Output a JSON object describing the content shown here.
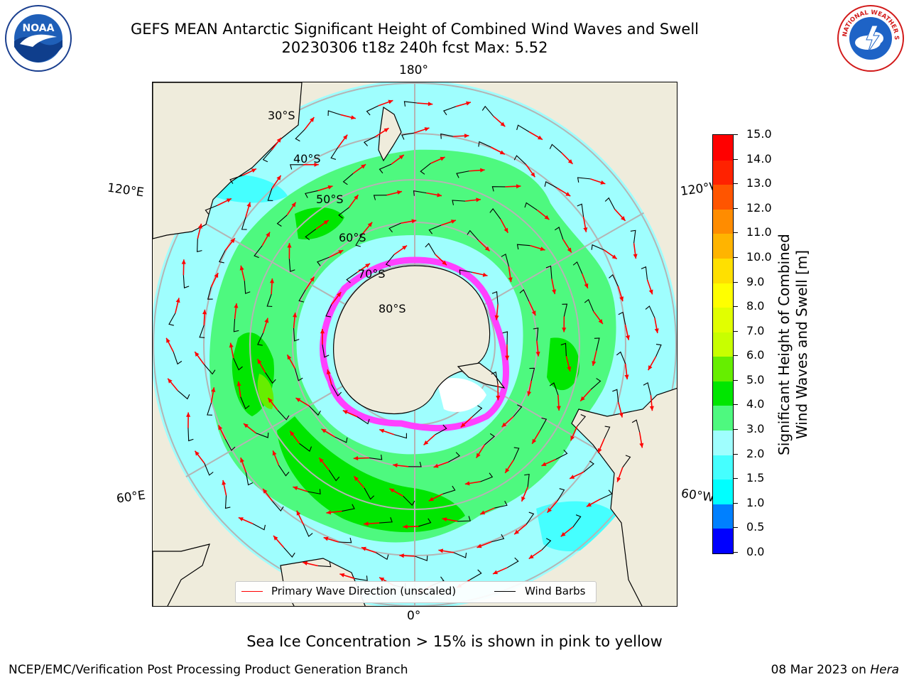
{
  "header": {
    "title_line1": "GEFS MEAN Antarctic Significant Height of Combined Wind Waves and Swell",
    "title_line2": "20230306 t18z 240h fcst   Max: 5.52"
  },
  "logos": {
    "noaa_text": "NOAA",
    "noaa_ring_text": "NATIONAL OCEANIC AND ATMOSPHERIC ADMINISTRATION · U.S. DEPARTMENT OF COMMERCE",
    "nws_ring_text": "NATIONAL WEATHER SERVICE"
  },
  "map": {
    "projection": "south-polar-stereographic",
    "longitude_labels": {
      "top": "180°",
      "bottom": "0°",
      "upper_left": "120°E",
      "upper_right": "120°W",
      "lower_left": "60°E",
      "lower_right": "60°W"
    },
    "latitude_labels": [
      "30°S",
      "40°S",
      "50°S",
      "60°S",
      "70°S",
      "80°S"
    ],
    "colors": {
      "ocean_low": "#9ffefe",
      "ocean_mid": "#4ef97f",
      "ocean_high": "#00e600",
      "land": "#efecdc",
      "sea_ice": "#ff40ff",
      "arrow": "#ff0000",
      "barb": "#000000"
    }
  },
  "colorbar": {
    "ticks": [
      "0.0",
      "0.5",
      "1.0",
      "1.5",
      "2.0",
      "3.0",
      "4.0",
      "5.0",
      "6.0",
      "7.0",
      "8.0",
      "9.0",
      "10.0",
      "11.0",
      "12.0",
      "13.0",
      "14.0",
      "15.0"
    ],
    "colors": [
      "#0000ff",
      "#0080ff",
      "#00ffff",
      "#45ffff",
      "#9ffefe",
      "#4ef97f",
      "#00e600",
      "#66ee00",
      "#c8ff00",
      "#e1ff00",
      "#ffff00",
      "#ffe000",
      "#ffb400",
      "#ff8c00",
      "#ff5500",
      "#ff2200",
      "#ff0000"
    ],
    "label_line1": "Significant Height of Combined",
    "label_line2": "Wind Waves and Swell [m]"
  },
  "legend": {
    "item1": "Primary Wave Direction (unscaled)",
    "item2": "Wind Barbs"
  },
  "caption": "Sea Ice Concentration > 15% is shown in pink to yellow",
  "footer": {
    "left": "NCEP/EMC/Verification Post Processing Product Generation Branch",
    "right_date": "08 Mar 2023 on ",
    "right_host": "Hera"
  }
}
